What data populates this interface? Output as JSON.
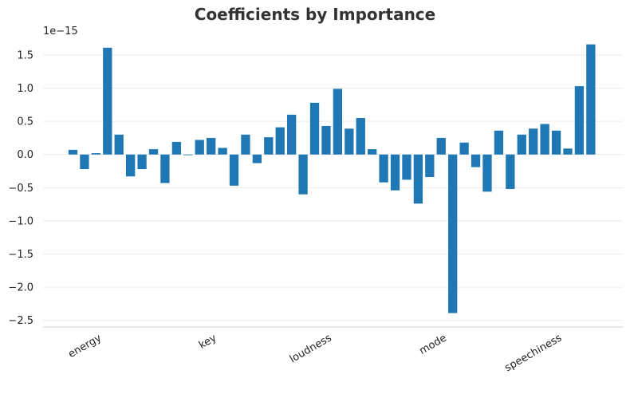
{
  "chart_data": {
    "type": "bar",
    "title": "Coefficients by Importance",
    "y_offset_label": "1e−15",
    "xlabel": "",
    "ylabel": "",
    "ylim": [
      -2.6,
      1.8
    ],
    "yticks": [
      1.5,
      1.0,
      0.5,
      0.0,
      -0.5,
      -1.0,
      -1.5,
      -2.0,
      -2.5
    ],
    "ytick_labels": [
      "1.5",
      "1.0",
      "0.5",
      "0.0",
      "−0.5",
      "−1.0",
      "−1.5",
      "−2.0",
      "−2.5"
    ],
    "xtick_labels": [
      {
        "index": 1,
        "label": "energy"
      },
      {
        "index": 11,
        "label": "key"
      },
      {
        "index": 21,
        "label": "loudness"
      },
      {
        "index": 31,
        "label": "mode"
      },
      {
        "index": 41,
        "label": "speechiness"
      }
    ],
    "values": [
      0.07,
      -0.22,
      0.02,
      1.61,
      0.3,
      -0.33,
      -0.22,
      0.08,
      -0.43,
      0.19,
      -0.01,
      0.22,
      0.25,
      0.1,
      -0.47,
      0.3,
      -0.13,
      0.26,
      0.41,
      0.6,
      -0.6,
      0.78,
      0.43,
      0.99,
      0.39,
      0.55,
      0.08,
      -0.42,
      -0.54,
      -0.38,
      -0.74,
      -0.34,
      0.25,
      -2.39,
      0.18,
      -0.19,
      -0.56,
      0.36,
      -0.52,
      0.3,
      0.39,
      0.46,
      0.36,
      0.09,
      1.03,
      1.66
    ],
    "bar_color": "#1f77b4",
    "grid": true,
    "grid_color": "#ebebeb"
  }
}
